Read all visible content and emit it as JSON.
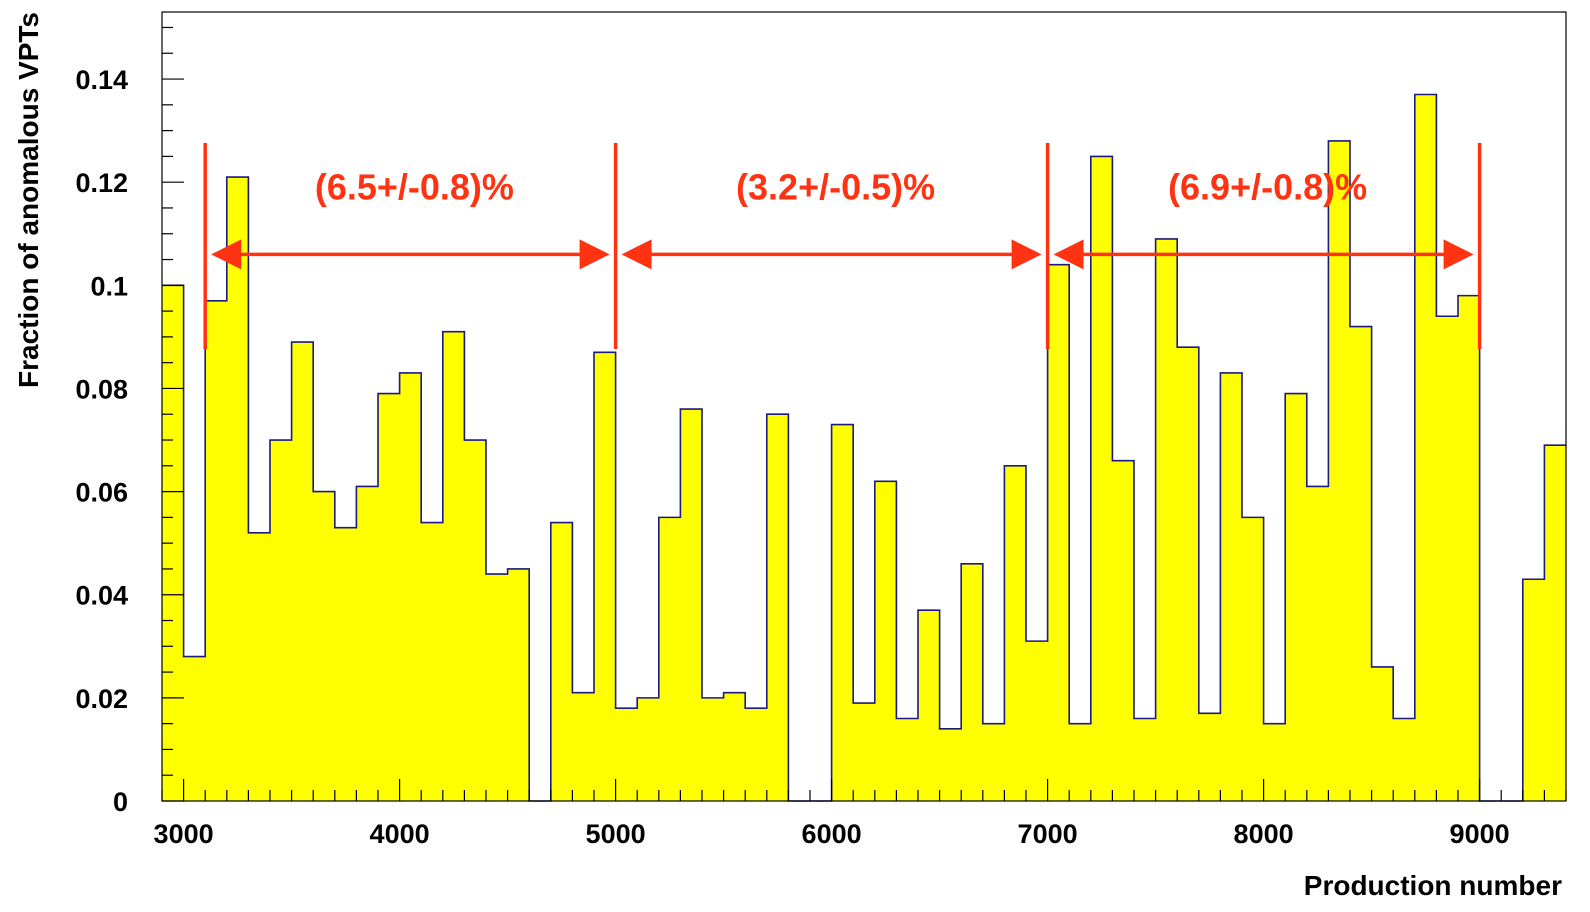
{
  "chart_data": {
    "type": "histogram",
    "xlabel": "Production number",
    "ylabel": "Fraction of anomalous VPTs",
    "xlim": [
      2900,
      9400
    ],
    "ylim": [
      0,
      0.153
    ],
    "bin_width": 100,
    "bin_start": 2900,
    "x_ticks": [
      3000,
      4000,
      5000,
      6000,
      7000,
      8000,
      9000
    ],
    "x_tick_labels": [
      "3000",
      "4000",
      "5000",
      "6000",
      "7000",
      "8000",
      "9000"
    ],
    "y_ticks": [
      0,
      0.02,
      0.04,
      0.06,
      0.08,
      0.1,
      0.12,
      0.14
    ],
    "y_tick_labels": [
      "0",
      "0.02",
      "0.04",
      "0.06",
      "0.08",
      "0.1",
      "0.12",
      "0.14"
    ],
    "values": [
      0.1,
      0.028,
      0.097,
      0.121,
      0.052,
      0.07,
      0.089,
      0.06,
      0.053,
      0.061,
      0.079,
      0.083,
      0.054,
      0.091,
      0.07,
      0.044,
      0.045,
      0,
      0.054,
      0.021,
      0.087,
      0.018,
      0.02,
      0.055,
      0.076,
      0.02,
      0.021,
      0.018,
      0.075,
      0,
      0,
      0.073,
      0.019,
      0.062,
      0.016,
      0.037,
      0.014,
      0.046,
      0.015,
      0.065,
      0.031,
      0.104,
      0.015,
      0.125,
      0.066,
      0.016,
      0.109,
      0.088,
      0.017,
      0.083,
      0.055,
      0.015,
      0.079,
      0.061,
      0.128,
      0.092,
      0.026,
      0.016,
      0.137,
      0.094,
      0.098,
      0,
      0,
      0.043,
      0.069
    ],
    "fill_color": "#ffff00",
    "line_color": "#1a1a80",
    "grid": false,
    "annotations": [
      {
        "text": "(6.5+/-0.8)%",
        "x_from": 3100,
        "x_to": 5000,
        "y_arrow": 0.106,
        "y_text": 0.119
      },
      {
        "text": "(3.2+/-0.5)%",
        "x_from": 5000,
        "x_to": 7000,
        "y_arrow": 0.106,
        "y_text": 0.119
      },
      {
        "text": "(6.9+/-0.8)%",
        "x_from": 7000,
        "x_to": 9000,
        "y_arrow": 0.106,
        "y_text": 0.119
      }
    ],
    "annotation_markers": [
      3100,
      5000,
      7000,
      9000
    ],
    "annotation_color": "#ff3311"
  }
}
